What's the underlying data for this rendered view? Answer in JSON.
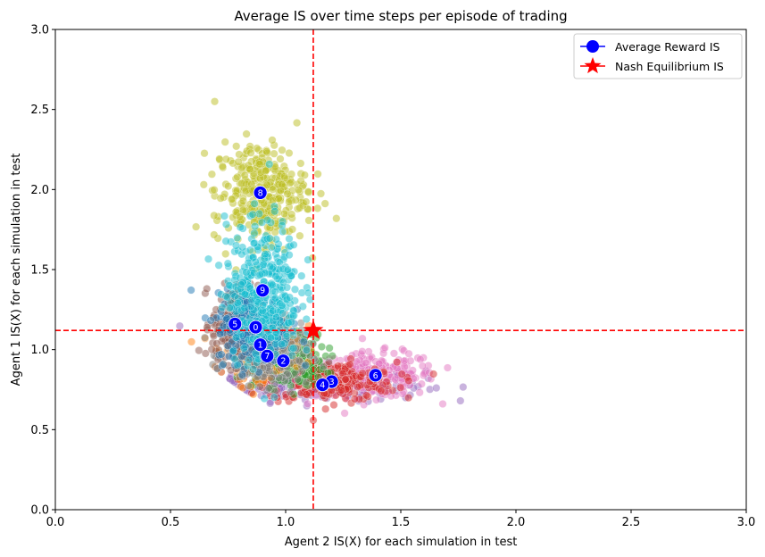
{
  "chart_data": {
    "type": "scatter",
    "title": "Average IS over time steps per episode of trading",
    "xlabel": "Agent 2 IS(X) for each simulation in test",
    "ylabel": "Agent 1 IS(X) for each simulation in test",
    "xlim": [
      0.0,
      3.0
    ],
    "ylim": [
      0.0,
      3.0
    ],
    "xticks": [
      "0.0",
      "0.5",
      "1.0",
      "1.5",
      "2.0",
      "2.5",
      "3.0"
    ],
    "yticks": [
      "0.0",
      "0.5",
      "1.0",
      "1.5",
      "2.0",
      "2.5",
      "3.0"
    ],
    "grid": false,
    "legend_position": "top-right",
    "legend": [
      {
        "label": "Average Reward IS",
        "marker": "circle",
        "color": "#0000ff"
      },
      {
        "label": "Nash Equilibrium IS",
        "marker": "star",
        "color": "#ff0000"
      }
    ],
    "series": [
      {
        "label": "0",
        "color": "#1f77b4",
        "center": [
          0.86,
          1.14
        ],
        "spread": [
          0.08,
          0.11
        ]
      },
      {
        "label": "1",
        "color": "#ff7f0e",
        "center": [
          0.89,
          1.03
        ],
        "spread": [
          0.08,
          0.1
        ]
      },
      {
        "label": "2",
        "color": "#2ca02c",
        "center": [
          0.99,
          0.93
        ],
        "spread": [
          0.09,
          0.08
        ]
      },
      {
        "label": "3",
        "color": "#d62728",
        "center": [
          1.2,
          0.8
        ],
        "spread": [
          0.14,
          0.06
        ]
      },
      {
        "label": "4",
        "color": "#9467bd",
        "center": [
          1.16,
          0.78
        ],
        "spread": [
          0.22,
          0.05
        ]
      },
      {
        "label": "5",
        "color": "#8c564b",
        "center": [
          0.78,
          1.16
        ],
        "spread": [
          0.05,
          0.12
        ]
      },
      {
        "label": "6",
        "color": "#e377c2",
        "center": [
          1.39,
          0.84
        ],
        "spread": [
          0.13,
          0.07
        ]
      },
      {
        "label": "7",
        "color": "#7f7f7f",
        "center": [
          0.92,
          0.96
        ],
        "spread": [
          0.09,
          0.09
        ]
      },
      {
        "label": "8",
        "color": "#bcbd22",
        "center": [
          0.89,
          1.98
        ],
        "spread": [
          0.1,
          0.16
        ]
      },
      {
        "label": "9",
        "color": "#17becf",
        "center": [
          0.9,
          1.37
        ],
        "spread": [
          0.08,
          0.22
        ]
      }
    ],
    "average_reward_points": [
      {
        "label": "0",
        "x": 0.87,
        "y": 1.14
      },
      {
        "label": "1",
        "x": 0.89,
        "y": 1.03
      },
      {
        "label": "2",
        "x": 0.99,
        "y": 0.93
      },
      {
        "label": "3",
        "x": 1.2,
        "y": 0.8
      },
      {
        "label": "4",
        "x": 1.16,
        "y": 0.78
      },
      {
        "label": "5",
        "x": 0.78,
        "y": 1.16
      },
      {
        "label": "6",
        "x": 1.39,
        "y": 0.84
      },
      {
        "label": "7",
        "x": 0.92,
        "y": 0.96
      },
      {
        "label": "8",
        "x": 0.89,
        "y": 1.98
      },
      {
        "label": "9",
        "x": 0.9,
        "y": 1.37
      }
    ],
    "nash_equilibrium": {
      "x": 1.12,
      "y": 1.12
    }
  }
}
